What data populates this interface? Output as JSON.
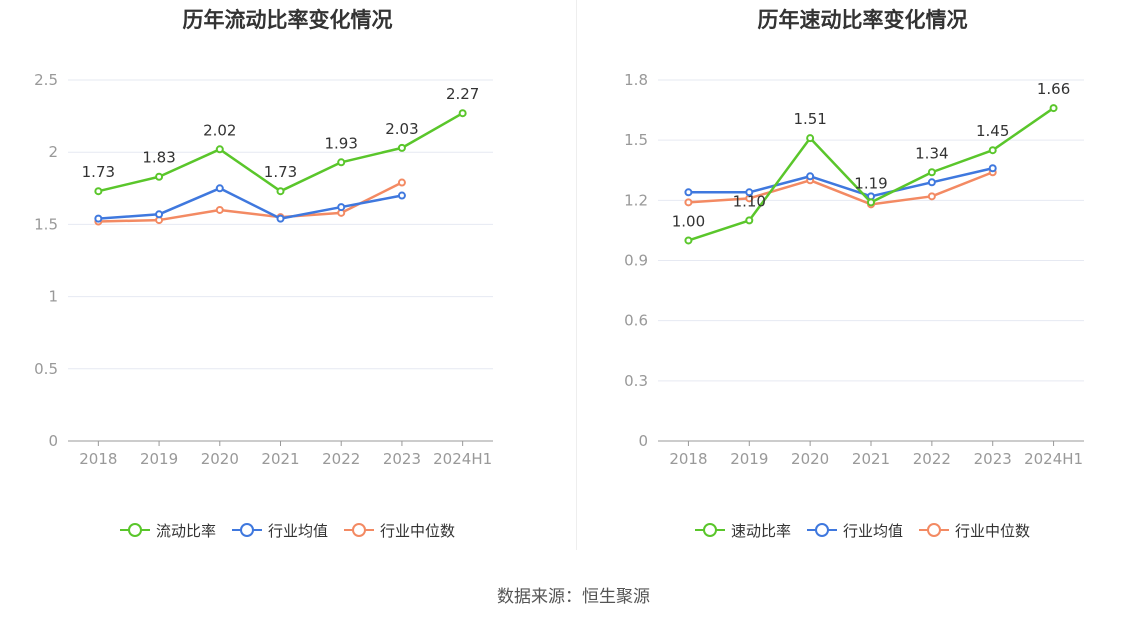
{
  "colors": {
    "main": "#5ac62b",
    "avg": "#3f78de",
    "median": "#f38a63",
    "grid": "#e6e9f2",
    "axis": "#999999",
    "tick": "#999999",
    "label": "#333333"
  },
  "source": "数据来源：恒生聚源",
  "chart_data": [
    {
      "type": "line",
      "title": "历年流动比率变化情况",
      "categories": [
        "2018",
        "2019",
        "2020",
        "2021",
        "2022",
        "2023",
        "2024H1"
      ],
      "ylim": [
        0,
        2.5
      ],
      "yticks": [
        "0",
        "0.5",
        "1",
        "1.5",
        "2",
        "2.5"
      ],
      "ytick_values": [
        0,
        0.5,
        1,
        1.5,
        2,
        2.5
      ],
      "grid": true,
      "legend_position": "bottom-center",
      "series": [
        {
          "name": "流动比率",
          "role": "main",
          "values": [
            1.73,
            1.83,
            2.02,
            1.73,
            1.93,
            2.03,
            2.27
          ],
          "data_labels": [
            "1.73",
            "1.83",
            "2.02",
            "1.73",
            "1.93",
            "2.03",
            "2.27"
          ]
        },
        {
          "name": "行业均值",
          "role": "avg",
          "values": [
            1.54,
            1.57,
            1.75,
            1.54,
            1.62,
            1.7,
            null
          ]
        },
        {
          "name": "行业中位数",
          "role": "median",
          "values": [
            1.52,
            1.53,
            1.6,
            1.55,
            1.58,
            1.79,
            null
          ]
        }
      ]
    },
    {
      "type": "line",
      "title": "历年速动比率变化情况",
      "categories": [
        "2018",
        "2019",
        "2020",
        "2021",
        "2022",
        "2023",
        "2024H1"
      ],
      "ylim": [
        0,
        1.8
      ],
      "yticks": [
        "0",
        "0.3",
        "0.6",
        "0.9",
        "1.2",
        "1.5",
        "1.8"
      ],
      "ytick_values": [
        0,
        0.3,
        0.6,
        0.9,
        1.2,
        1.5,
        1.8
      ],
      "grid": true,
      "legend_position": "bottom-center",
      "series": [
        {
          "name": "速动比率",
          "role": "main",
          "values": [
            1.0,
            1.1,
            1.51,
            1.19,
            1.34,
            1.45,
            1.66
          ],
          "data_labels": [
            "1.00",
            "1.10",
            "1.51",
            "1.19",
            "1.34",
            "1.45",
            "1.66"
          ]
        },
        {
          "name": "行业均值",
          "role": "avg",
          "values": [
            1.24,
            1.24,
            1.32,
            1.22,
            1.29,
            1.36,
            null
          ]
        },
        {
          "name": "行业中位数",
          "role": "median",
          "values": [
            1.19,
            1.21,
            1.3,
            1.18,
            1.22,
            1.34,
            null
          ]
        }
      ]
    }
  ]
}
